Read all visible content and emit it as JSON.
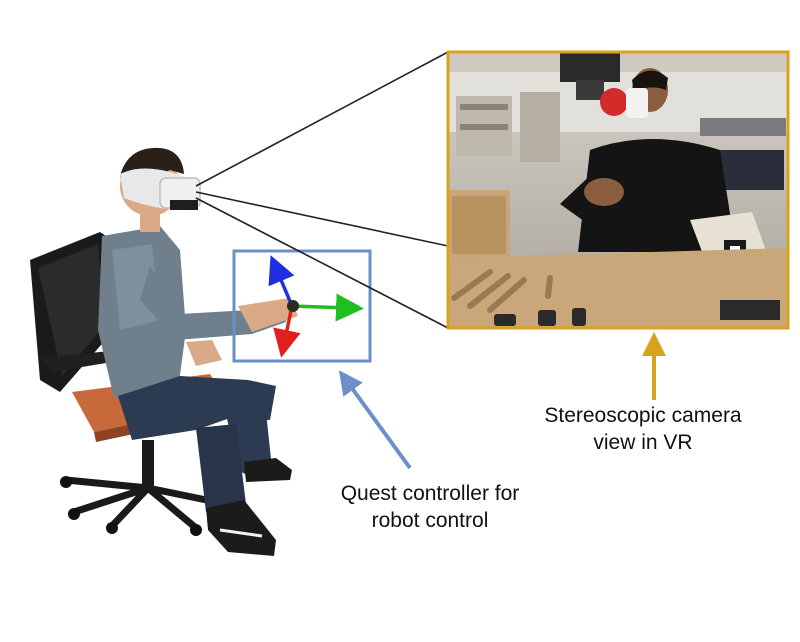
{
  "labels": {
    "camera_view": [
      "Stereoscopic camera",
      "view in VR"
    ],
    "controller": [
      "Quest controller for",
      "robot control"
    ]
  },
  "colors": {
    "camera_view_accent": "#d9a21c",
    "controller_accent": "#6b8fc9",
    "axis_x": "#1fbf1f",
    "axis_y": "#1f2fe0",
    "axis_z": "#e01f1f",
    "chair_seat": "#c8693a"
  },
  "icons": {
    "controller_frame": "xyz-axes-icon",
    "user": "person-in-vr-headset-icon"
  }
}
